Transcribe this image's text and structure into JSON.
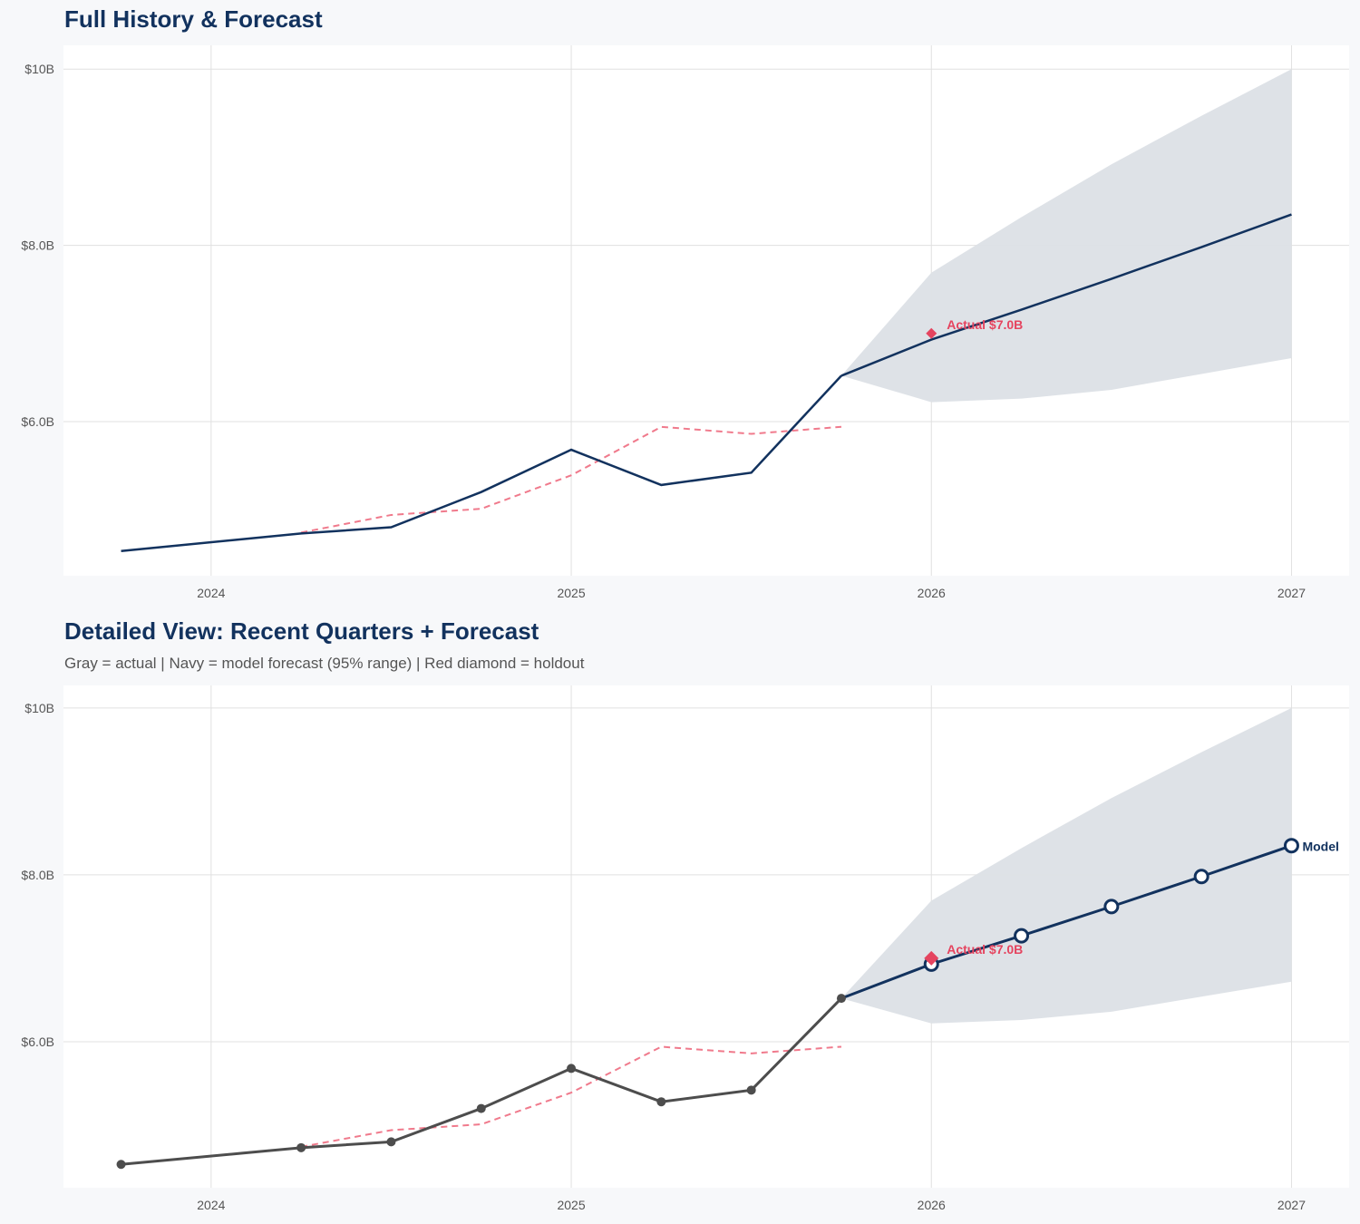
{
  "chart_data": [
    {
      "type": "line",
      "title": "Full History & Forecast",
      "xlabel": "",
      "ylabel": "",
      "xlim": [
        2023.59,
        2027.16
      ],
      "ylim": [
        4.25,
        10.27
      ],
      "x_ticks": [
        "2024",
        "2025",
        "2026",
        "2027"
      ],
      "y_ticks": [
        "$6.0B",
        "$8.0B",
        "$10B"
      ],
      "grid": true,
      "show_markers": false,
      "history_color": "#12325e",
      "series": [
        {
          "role": "history",
          "x": [
            2023.75,
            2024.25,
            2024.5,
            2024.75,
            2025.0,
            2025.25,
            2025.5,
            2025.75
          ],
          "values": [
            4.53,
            4.73,
            4.8,
            5.2,
            5.68,
            5.28,
            5.42,
            6.52
          ]
        },
        {
          "role": "dashed",
          "x": [
            2024.25,
            2024.5,
            2024.75,
            2025.0,
            2025.25,
            2025.5,
            2025.75
          ],
          "values": [
            4.74,
            4.94,
            5.01,
            5.39,
            5.94,
            5.86,
            5.94
          ]
        },
        {
          "role": "forecast",
          "x": [
            2025.75,
            2026.0,
            2026.25,
            2026.5,
            2026.75,
            2027.0
          ],
          "values": [
            6.52,
            6.93,
            7.27,
            7.62,
            7.98,
            8.35
          ]
        }
      ],
      "band": {
        "x": [
          2025.75,
          2026.0,
          2026.25,
          2026.5,
          2026.75,
          2027.0
        ],
        "upper": [
          6.52,
          7.69,
          8.32,
          8.92,
          9.47,
          10.0
        ],
        "lower": [
          6.52,
          6.22,
          6.26,
          6.36,
          6.54,
          6.72
        ]
      },
      "holdout": {
        "x": 2026.0,
        "value": 7.0,
        "label": "Actual $7.0B"
      },
      "colors": {
        "forecast": "#12325e",
        "band": "#dce0e6",
        "dashed": "#f07a8c",
        "holdout": "#e5445f"
      }
    },
    {
      "type": "line",
      "title": "Detailed View: Recent Quarters + Forecast",
      "subtitle": "Gray = actual  |  Navy = model forecast (95% range)  |  Red diamond = holdout",
      "xlabel": "",
      "ylabel": "",
      "xlim": [
        2023.59,
        2027.16
      ],
      "ylim": [
        4.25,
        10.27
      ],
      "x_ticks": [
        "2024",
        "2025",
        "2026",
        "2027"
      ],
      "y_ticks": [
        "$6.0B",
        "$8.0B",
        "$10B"
      ],
      "grid": true,
      "show_markers": true,
      "history_color": "#4d4d4d",
      "series": [
        {
          "role": "history",
          "x": [
            2023.75,
            2024.25,
            2024.5,
            2024.75,
            2025.0,
            2025.25,
            2025.5,
            2025.75
          ],
          "values": [
            4.53,
            4.73,
            4.8,
            5.2,
            5.68,
            5.28,
            5.42,
            6.52
          ]
        },
        {
          "role": "dashed",
          "x": [
            2024.25,
            2024.5,
            2024.75,
            2025.0,
            2025.25,
            2025.5,
            2025.75
          ],
          "values": [
            4.74,
            4.94,
            5.01,
            5.39,
            5.94,
            5.86,
            5.94
          ]
        },
        {
          "role": "forecast",
          "x": [
            2025.75,
            2026.0,
            2026.25,
            2026.5,
            2026.75,
            2027.0
          ],
          "values": [
            6.52,
            6.93,
            7.27,
            7.62,
            7.98,
            8.35
          ],
          "end_label": "Model"
        }
      ],
      "band": {
        "x": [
          2025.75,
          2026.0,
          2026.25,
          2026.5,
          2026.75,
          2027.0
        ],
        "upper": [
          6.52,
          7.69,
          8.32,
          8.92,
          9.47,
          10.0
        ],
        "lower": [
          6.52,
          6.22,
          6.26,
          6.36,
          6.54,
          6.72
        ]
      },
      "holdout": {
        "x": 2026.0,
        "value": 7.0,
        "label": "Actual $7.0B"
      },
      "colors": {
        "forecast": "#12325e",
        "band": "#dce0e6",
        "dashed": "#f07a8c",
        "holdout": "#e5445f"
      }
    }
  ]
}
